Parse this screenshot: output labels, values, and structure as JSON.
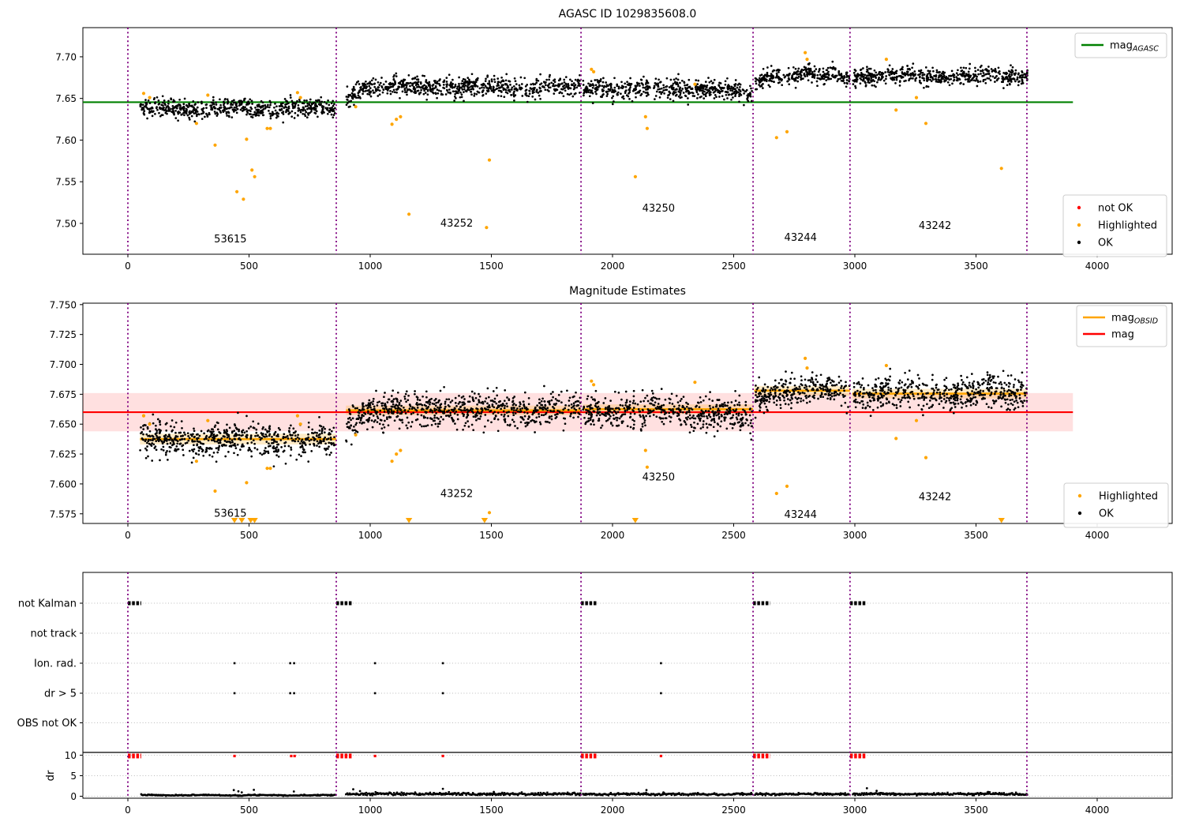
{
  "figure": {
    "background": "#ffffff"
  },
  "colors": {
    "ok": "#000000",
    "highlighted": "#ffa500",
    "not_ok": "#ff0000",
    "mag_agasc_line": "#008000",
    "mag_line": "#ff0000",
    "mag_obsid_line": "#ffa500",
    "mag_band_fill": "rgba(255,0,0,0.12)",
    "obsid_band_fill": "rgba(255,165,0,0.22)",
    "obsid_boundary": "#800080",
    "grid": "#bbbbbb",
    "spine": "#000000",
    "legend_border": "#cccccc"
  },
  "x_axis": {
    "lim": [
      -186,
      4310
    ],
    "ticks": [
      {
        "value": 0,
        "label": "0"
      },
      {
        "value": 500,
        "label": "500"
      },
      {
        "value": 1000,
        "label": "1000"
      },
      {
        "value": 1500,
        "label": "1500"
      },
      {
        "value": 2000,
        "label": "2000"
      },
      {
        "value": 2500,
        "label": "2500"
      },
      {
        "value": 3000,
        "label": "3000"
      },
      {
        "value": 3500,
        "label": "3500"
      },
      {
        "value": 4000,
        "label": "4000"
      }
    ]
  },
  "obsid_boundaries": [
    0,
    860,
    1870,
    2580,
    2980,
    3710
  ],
  "chart_data": [
    {
      "type": "scatter",
      "title": "AGASC ID 1029835608.0",
      "ylim": [
        7.463,
        7.735
      ],
      "yticks": [
        {
          "value": 7.5,
          "label": "7.50"
        },
        {
          "value": 7.55,
          "label": "7.55"
        },
        {
          "value": 7.6,
          "label": "7.60"
        },
        {
          "value": 7.65,
          "label": "7.65"
        },
        {
          "value": 7.7,
          "label": "7.70"
        }
      ],
      "mag_agasc": 7.6455,
      "ref_line_x_start": -186,
      "ref_line_x_end": 3900,
      "legend_lines": [
        {
          "label": "mag",
          "subscript": "AGASC",
          "color": "#008000"
        }
      ],
      "legend_markers": [
        {
          "label": "not OK",
          "color": "#ff0000"
        },
        {
          "label": "Highlighted",
          "color": "#ffa500"
        },
        {
          "label": "OK",
          "color": "#000000"
        }
      ],
      "obsid_labels": [
        {
          "text": "53615",
          "x": 423,
          "y": 7.477
        },
        {
          "text": "43252",
          "x": 1357,
          "y": 7.496
        },
        {
          "text": "43250",
          "x": 2190,
          "y": 7.514
        },
        {
          "text": "43244",
          "x": 2776,
          "y": 7.479
        },
        {
          "text": "43242",
          "x": 3331,
          "y": 7.4935
        }
      ],
      "ok_clusters": [
        {
          "x0": 50,
          "x1": 855,
          "mean": 7.638,
          "sd": 0.0055,
          "n": 620
        },
        {
          "x0": 900,
          "x1": 1868,
          "mean": 7.6635,
          "sd": 0.006,
          "n": 740,
          "start_dip": 0.012
        },
        {
          "x0": 1878,
          "x1": 2576,
          "mean": 7.662,
          "sd": 0.006,
          "n": 520,
          "end_dip": 0.008
        },
        {
          "x0": 2588,
          "x1": 2978,
          "mean": 7.678,
          "sd": 0.005,
          "n": 300,
          "start_dip": 0.008
        },
        {
          "x0": 2992,
          "x1": 3712,
          "mean": 7.677,
          "sd": 0.005,
          "n": 550
        }
      ],
      "highlighted_points": [
        [
          65,
          7.656
        ],
        [
          90,
          7.651
        ],
        [
          283,
          7.62
        ],
        [
          330,
          7.654
        ],
        [
          360,
          7.594
        ],
        [
          450,
          7.538
        ],
        [
          477,
          7.529
        ],
        [
          490,
          7.601
        ],
        [
          512,
          7.564
        ],
        [
          523,
          7.556
        ],
        [
          575,
          7.614
        ],
        [
          588,
          7.614
        ],
        [
          700,
          7.657
        ],
        [
          712,
          7.651
        ],
        [
          940,
          7.64
        ],
        [
          1090,
          7.619
        ],
        [
          1108,
          7.625
        ],
        [
          1125,
          7.628
        ],
        [
          1160,
          7.511
        ],
        [
          1480,
          7.495
        ],
        [
          1492,
          7.576
        ],
        [
          1913,
          7.685
        ],
        [
          1922,
          7.682
        ],
        [
          2094,
          7.556
        ],
        [
          2136,
          7.628
        ],
        [
          2143,
          7.614
        ],
        [
          2340,
          7.667
        ],
        [
          2677,
          7.603
        ],
        [
          2720,
          7.61
        ],
        [
          2795,
          7.705
        ],
        [
          2803,
          7.697
        ],
        [
          3130,
          7.697
        ],
        [
          3170,
          7.636
        ],
        [
          3254,
          7.651
        ],
        [
          3293,
          7.62
        ],
        [
          3605,
          7.566
        ]
      ]
    },
    {
      "type": "scatter",
      "title": "Magnitude Estimates",
      "ylim": [
        7.5669,
        7.7512
      ],
      "yticks": [
        {
          "value": 7.575,
          "label": "7.575"
        },
        {
          "value": 7.6,
          "label": "7.600"
        },
        {
          "value": 7.625,
          "label": "7.625"
        },
        {
          "value": 7.65,
          "label": "7.650"
        },
        {
          "value": 7.675,
          "label": "7.675"
        },
        {
          "value": 7.7,
          "label": "7.700"
        },
        {
          "value": 7.725,
          "label": "7.725"
        },
        {
          "value": 7.75,
          "label": "7.750"
        }
      ],
      "mag": 7.66,
      "mag_band_halfwidth": 0.016,
      "ref_line_x_start": -186,
      "ref_line_x_end": 3900,
      "obsid_mag_segments": [
        {
          "x0": 50,
          "x1": 860,
          "mag": 7.6375,
          "band_halfwidth": 0.0045
        },
        {
          "x0": 900,
          "x1": 1870,
          "mag": 7.6615,
          "band_halfwidth": 0.004
        },
        {
          "x0": 1878,
          "x1": 2580,
          "mag": 7.6625,
          "band_halfwidth": 0.004
        },
        {
          "x0": 2585,
          "x1": 2980,
          "mag": 7.678,
          "band_halfwidth": 0.004
        },
        {
          "x0": 2990,
          "x1": 3712,
          "mag": 7.6755,
          "band_halfwidth": 0.004
        }
      ],
      "legend_lines": [
        {
          "label": "mag",
          "subscript": "OBSID",
          "color": "#ffa500"
        },
        {
          "label": "mag",
          "subscript": "",
          "color": "#ff0000"
        }
      ],
      "legend_markers": [
        {
          "label": "Highlighted",
          "color": "#ffa500"
        },
        {
          "label": "OK",
          "color": "#000000"
        }
      ],
      "obsid_labels": [
        {
          "text": "53615",
          "x": 423,
          "y": 7.5725
        },
        {
          "text": "43252",
          "x": 1357,
          "y": 7.589
        },
        {
          "text": "43250",
          "x": 2190,
          "y": 7.603
        },
        {
          "text": "43244",
          "x": 2776,
          "y": 7.5715
        },
        {
          "text": "43242",
          "x": 3331,
          "y": 7.5865
        }
      ],
      "ok_clusters": [
        {
          "x0": 50,
          "x1": 855,
          "mean": 7.637,
          "sd": 0.007,
          "n": 620
        },
        {
          "x0": 900,
          "x1": 1868,
          "mean": 7.662,
          "sd": 0.007,
          "n": 740,
          "start_dip": 0.012
        },
        {
          "x0": 1878,
          "x1": 2576,
          "mean": 7.661,
          "sd": 0.007,
          "n": 520,
          "end_dip": 0.008
        },
        {
          "x0": 2588,
          "x1": 2978,
          "mean": 7.678,
          "sd": 0.006,
          "n": 300,
          "start_dip": 0.008
        },
        {
          "x0": 2992,
          "x1": 3712,
          "mean": 7.6755,
          "sd": 0.007,
          "n": 550
        }
      ],
      "highlighted_points": [
        [
          65,
          7.657
        ],
        [
          90,
          7.65
        ],
        [
          283,
          7.619
        ],
        [
          330,
          7.653
        ],
        [
          360,
          7.594
        ],
        [
          490,
          7.601
        ],
        [
          575,
          7.613
        ],
        [
          588,
          7.613
        ],
        [
          700,
          7.657
        ],
        [
          712,
          7.65
        ],
        [
          940,
          7.641
        ],
        [
          1090,
          7.619
        ],
        [
          1108,
          7.625
        ],
        [
          1125,
          7.628
        ],
        [
          1492,
          7.576
        ],
        [
          1913,
          7.686
        ],
        [
          1922,
          7.683
        ],
        [
          2136,
          7.628
        ],
        [
          2143,
          7.614
        ],
        [
          2340,
          7.685
        ],
        [
          2677,
          7.592
        ],
        [
          2720,
          7.598
        ],
        [
          2795,
          7.705
        ],
        [
          2803,
          7.697
        ],
        [
          3130,
          7.699
        ],
        [
          3170,
          7.638
        ],
        [
          3254,
          7.653
        ],
        [
          3293,
          7.622
        ]
      ],
      "clipped_low_x": [
        440,
        470,
        507,
        523,
        1160,
        1472,
        2094,
        3605
      ]
    },
    {
      "type": "flags",
      "flag_rows": [
        "not Kalman",
        "not track",
        "Ion. rad.",
        "dr > 5",
        "OBS not OK"
      ],
      "dr_axis_label": "dr",
      "dr_ticks": [
        {
          "value": 0,
          "label": "0"
        },
        {
          "value": 5,
          "label": "5"
        },
        {
          "value": 10,
          "label": "10"
        }
      ],
      "not_kalman_ranges": [
        [
          0,
          55
        ],
        [
          860,
          928
        ],
        [
          1870,
          1935
        ],
        [
          2580,
          2650
        ],
        [
          2980,
          3045
        ]
      ],
      "not_track_x": [],
      "ion_rad_x": [
        440,
        670,
        686,
        1020,
        1300,
        2200
      ],
      "dr_gt5_x": [
        440,
        670,
        686,
        1020,
        1300,
        2200
      ],
      "obs_not_ok_x": [],
      "dr_clipped_ranges": [
        [
          0,
          55
        ],
        [
          860,
          928
        ],
        [
          1870,
          1935
        ],
        [
          2580,
          2650
        ],
        [
          2980,
          3045
        ]
      ],
      "dr_clipped_singles": [
        440,
        674,
        688,
        1020,
        1300,
        2200
      ],
      "dr_clip_value": 9.8,
      "dr_solid_line_value": 10.6,
      "dr_trace": [
        {
          "x0": 55,
          "x1": 855,
          "mean": 0.25,
          "sd": 0.07
        },
        {
          "x0": 900,
          "x1": 1868,
          "mean": 0.55,
          "sd": 0.16
        },
        {
          "x0": 1878,
          "x1": 2576,
          "mean": 0.5,
          "sd": 0.13
        },
        {
          "x0": 2588,
          "x1": 2978,
          "mean": 0.5,
          "sd": 0.12
        },
        {
          "x0": 2992,
          "x1": 3712,
          "mean": 0.55,
          "sd": 0.14
        }
      ],
      "dr_spikes": [
        [
          437,
          1.5
        ],
        [
          456,
          1.2
        ],
        [
          470,
          0.95
        ],
        [
          520,
          1.55
        ],
        [
          685,
          1.15
        ],
        [
          930,
          1.7
        ],
        [
          958,
          1.25
        ],
        [
          1022,
          1.0
        ],
        [
          1300,
          1.8
        ],
        [
          1510,
          1.05
        ],
        [
          2140,
          1.5
        ],
        [
          2210,
          0.95
        ],
        [
          3050,
          1.95
        ],
        [
          3090,
          1.3
        ],
        [
          3550,
          1.05
        ]
      ]
    }
  ]
}
